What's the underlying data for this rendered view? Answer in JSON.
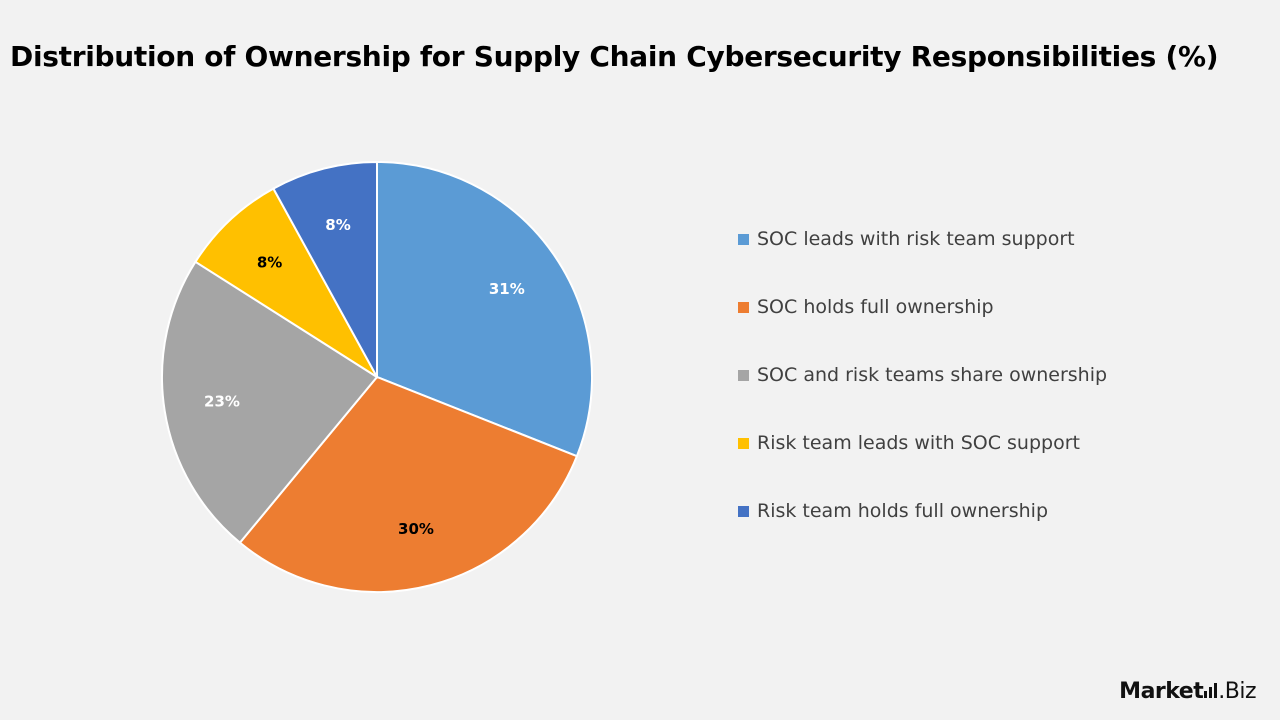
{
  "chart_data": {
    "type": "pie",
    "title": "Distribution of Ownership for Supply Chain Cybersecurity Responsibilities (%)",
    "slices": [
      {
        "label": "SOC leads with risk team support",
        "value": 31,
        "display": "31%",
        "color": "#5b9bd5",
        "label_color": "#ffffff"
      },
      {
        "label": "SOC holds full ownership",
        "value": 30,
        "display": "30%",
        "color": "#ed7d31",
        "label_color": "#000000"
      },
      {
        "label": "SOC and risk teams share ownership",
        "value": 23,
        "display": "23%",
        "color": "#a5a5a5",
        "label_color": "#ffffff"
      },
      {
        "label": "Risk team leads with SOC support",
        "value": 8,
        "display": "8%",
        "color": "#ffc000",
        "label_color": "#000000"
      },
      {
        "label": "Risk team holds full ownership",
        "value": 8,
        "display": "8%",
        "color": "#4472c4",
        "label_color": "#ffffff"
      }
    ],
    "start_angle": "12 o'clock",
    "direction": "clockwise",
    "legend_position": "right"
  },
  "branding": {
    "logo_main": "Market",
    "logo_suffix": ".Biz"
  }
}
